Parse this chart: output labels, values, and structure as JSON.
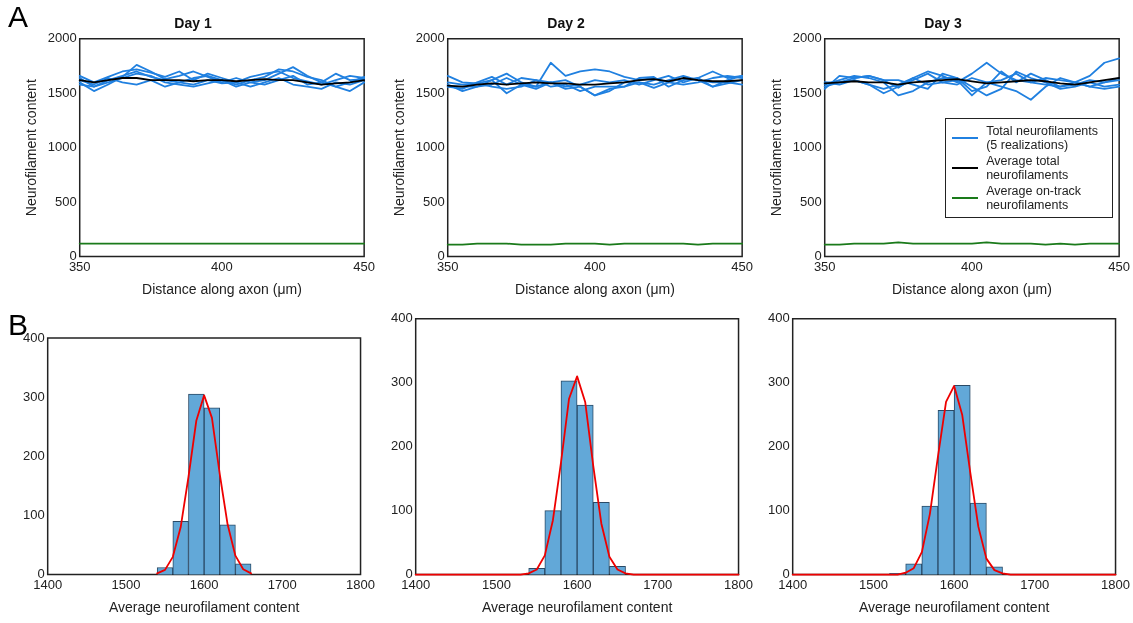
{
  "chart_data": [
    {
      "type": "line",
      "title": "Day 1",
      "xlabel": "Distance along axon (μm)",
      "ylabel": "Neurofilament content",
      "annotations": [
        "A"
      ],
      "x": [
        350,
        355,
        360,
        365,
        370,
        375,
        380,
        385,
        390,
        395,
        400,
        405,
        410,
        415,
        420,
        425,
        430,
        435,
        440,
        445,
        450
      ],
      "xlim": [
        350,
        450
      ],
      "xticks": [
        350,
        400,
        450
      ],
      "ylim": [
        0,
        2000
      ],
      "yticks": [
        0,
        500,
        1000,
        1500,
        2000
      ],
      "series": [
        {
          "color": "#2080e0",
          "values": [
            1660,
            1600,
            1650,
            1700,
            1720,
            1690,
            1650,
            1700,
            1620,
            1680,
            1640,
            1600,
            1650,
            1680,
            1700,
            1640,
            1610,
            1580,
            1620,
            1660,
            1640
          ]
        },
        {
          "color": "#2080e0",
          "values": [
            1640,
            1560,
            1620,
            1660,
            1700,
            1650,
            1620,
            1600,
            1640,
            1660,
            1620,
            1580,
            1620,
            1650,
            1720,
            1700,
            1650,
            1620,
            1560,
            1600,
            1650
          ]
        },
        {
          "color": "#2080e0",
          "values": [
            1600,
            1520,
            1580,
            1650,
            1760,
            1700,
            1630,
            1660,
            1700,
            1650,
            1600,
            1640,
            1600,
            1580,
            1620,
            1660,
            1580,
            1600,
            1680,
            1620,
            1630
          ]
        },
        {
          "color": "#2080e0",
          "values": [
            1620,
            1580,
            1640,
            1600,
            1580,
            1620,
            1560,
            1600,
            1580,
            1620,
            1590,
            1600,
            1560,
            1600,
            1640,
            1580,
            1560,
            1540,
            1600,
            1580,
            1620
          ]
        },
        {
          "color": "#2080e0",
          "values": [
            1580,
            1560,
            1600,
            1640,
            1680,
            1660,
            1600,
            1580,
            1560,
            1590,
            1620,
            1560,
            1600,
            1620,
            1680,
            1740,
            1660,
            1600,
            1560,
            1520,
            1600
          ]
        },
        {
          "color": "#000000",
          "values": [
            1620,
            1600,
            1620,
            1640,
            1640,
            1620,
            1620,
            1620,
            1610,
            1620,
            1620,
            1610,
            1620,
            1630,
            1620,
            1620,
            1600,
            1580,
            1590,
            1600,
            1620
          ]
        },
        {
          "color": "#1a7a1a",
          "values": [
            120,
            120,
            120,
            120,
            120,
            120,
            120,
            120,
            120,
            120,
            120,
            120,
            120,
            120,
            120,
            120,
            120,
            120,
            120,
            120,
            120
          ]
        }
      ]
    },
    {
      "type": "line",
      "title": "Day 2",
      "xlabel": "Distance along axon (μm)",
      "ylabel": "Neurofilament content",
      "x": [
        350,
        355,
        360,
        365,
        370,
        375,
        380,
        385,
        390,
        395,
        400,
        405,
        410,
        415,
        420,
        425,
        430,
        435,
        440,
        445,
        450
      ],
      "xlim": [
        350,
        450
      ],
      "xticks": [
        350,
        400,
        450
      ],
      "ylim": [
        0,
        2000
      ],
      "yticks": [
        0,
        500,
        1000,
        1500,
        2000
      ],
      "series": [
        {
          "color": "#2080e0",
          "values": [
            1660,
            1600,
            1590,
            1620,
            1680,
            1600,
            1560,
            1780,
            1660,
            1700,
            1720,
            1700,
            1650,
            1620,
            1640,
            1600,
            1580,
            1600,
            1640,
            1660,
            1640
          ]
        },
        {
          "color": "#2080e0",
          "values": [
            1560,
            1540,
            1600,
            1650,
            1580,
            1640,
            1620,
            1600,
            1560,
            1580,
            1620,
            1600,
            1620,
            1580,
            1620,
            1660,
            1600,
            1640,
            1700,
            1640,
            1660
          ]
        },
        {
          "color": "#2080e0",
          "values": [
            1580,
            1520,
            1560,
            1580,
            1640,
            1580,
            1540,
            1600,
            1540,
            1560,
            1480,
            1540,
            1560,
            1600,
            1580,
            1620,
            1660,
            1620,
            1560,
            1590,
            1620
          ]
        },
        {
          "color": "#2080e0",
          "values": [
            1560,
            1560,
            1560,
            1620,
            1500,
            1580,
            1560,
            1600,
            1620,
            1560,
            1480,
            1520,
            1600,
            1600,
            1550,
            1600,
            1640,
            1620,
            1600,
            1600,
            1580
          ]
        },
        {
          "color": "#2080e0",
          "values": [
            1600,
            1580,
            1590,
            1560,
            1540,
            1560,
            1620,
            1560,
            1580,
            1520,
            1560,
            1560,
            1560,
            1640,
            1650,
            1560,
            1620,
            1640,
            1560,
            1620,
            1660
          ]
        },
        {
          "color": "#000000",
          "values": [
            1570,
            1560,
            1580,
            1590,
            1580,
            1590,
            1600,
            1590,
            1590,
            1580,
            1580,
            1590,
            1600,
            1620,
            1630,
            1610,
            1640,
            1620,
            1610,
            1610,
            1620
          ]
        },
        {
          "color": "#1a7a1a",
          "values": [
            110,
            110,
            120,
            120,
            120,
            110,
            110,
            110,
            120,
            120,
            120,
            110,
            120,
            120,
            120,
            120,
            120,
            110,
            120,
            120,
            120
          ]
        }
      ]
    },
    {
      "type": "line",
      "title": "Day 3",
      "xlabel": "Distance along axon (μm)",
      "ylabel": "Neurofilament content",
      "legend": "right",
      "x": [
        350,
        355,
        360,
        365,
        370,
        375,
        380,
        385,
        390,
        395,
        400,
        405,
        410,
        415,
        420,
        425,
        430,
        435,
        440,
        445,
        450
      ],
      "xlim": [
        350,
        450
      ],
      "xticks": [
        350,
        400,
        450
      ],
      "ylim": [
        0,
        2000
      ],
      "yticks": [
        0,
        500,
        1000,
        1500,
        2000
      ],
      "series": [
        {
          "name": "Total neurofilaments (5 realizations)",
          "color": "#2080e0",
          "values": [
            1540,
            1660,
            1640,
            1660,
            1620,
            1550,
            1640,
            1700,
            1660,
            1600,
            1680,
            1780,
            1680,
            1620,
            1600,
            1580,
            1560,
            1600,
            1660,
            1780,
            1820
          ]
        },
        {
          "color": "#2080e0",
          "values": [
            1580,
            1620,
            1660,
            1640,
            1600,
            1480,
            1520,
            1600,
            1640,
            1640,
            1560,
            1480,
            1540,
            1700,
            1640,
            1600,
            1540,
            1560,
            1600,
            1560,
            1580
          ]
        },
        {
          "color": "#2080e0",
          "values": [
            1600,
            1580,
            1620,
            1580,
            1540,
            1580,
            1640,
            1580,
            1600,
            1580,
            1640,
            1600,
            1620,
            1680,
            1600,
            1640,
            1620,
            1600,
            1560,
            1600,
            1620
          ]
        },
        {
          "color": "#2080e0",
          "values": [
            1560,
            1600,
            1620,
            1580,
            1500,
            1560,
            1620,
            1680,
            1600,
            1620,
            1480,
            1600,
            1560,
            1520,
            1440,
            1560,
            1640,
            1600,
            1560,
            1540,
            1560
          ]
        },
        {
          "color": "#2080e0",
          "values": [
            1600,
            1600,
            1640,
            1660,
            1620,
            1620,
            1580,
            1540,
            1680,
            1640,
            1520,
            1560,
            1700,
            1600,
            1680,
            1620,
            1560,
            1580,
            1620,
            1600,
            1640
          ]
        },
        {
          "name": "Average total neurofilaments",
          "color": "#000000",
          "values": [
            1590,
            1600,
            1610,
            1600,
            1600,
            1580,
            1600,
            1610,
            1620,
            1630,
            1610,
            1590,
            1600,
            1610,
            1620,
            1610,
            1590,
            1580,
            1600,
            1620,
            1640
          ]
        },
        {
          "name": "Average on-track neurofilaments",
          "color": "#1a7a1a",
          "values": [
            110,
            110,
            120,
            120,
            120,
            130,
            120,
            120,
            120,
            120,
            120,
            130,
            120,
            120,
            120,
            110,
            120,
            110,
            120,
            120,
            120
          ]
        }
      ]
    },
    {
      "type": "histogram",
      "xlabel": "Average neurofilament content",
      "annotations": [
        "B"
      ],
      "color": "#62a8d8",
      "bins": [
        1540,
        1560,
        1580,
        1600,
        1620,
        1640,
        1660
      ],
      "values": [
        12,
        90,
        305,
        282,
        84,
        18
      ],
      "xlim": [
        1400,
        1800
      ],
      "xticks": [
        1400,
        1500,
        1600,
        1700,
        1800
      ],
      "ylim": [
        0,
        400
      ],
      "yticks": [
        0,
        100,
        200,
        300,
        400
      ],
      "series": [
        {
          "type": "line",
          "color": "#ee0000",
          "x": [
            1540,
            1550,
            1560,
            1570,
            1580,
            1590,
            1600,
            1610,
            1620,
            1630,
            1640,
            1650,
            1660
          ],
          "values": [
            2,
            8,
            30,
            80,
            165,
            260,
            303,
            265,
            170,
            85,
            32,
            9,
            2
          ]
        }
      ]
    },
    {
      "type": "histogram",
      "xlabel": "Average neurofilament content",
      "color": "#62a8d8",
      "bins": [
        1540,
        1560,
        1580,
        1600,
        1620,
        1640,
        1660
      ],
      "values": [
        10,
        100,
        303,
        265,
        113,
        13
      ],
      "xlim": [
        1400,
        1800
      ],
      "xticks": [
        1400,
        1500,
        1600,
        1700,
        1800
      ],
      "ylim": [
        0,
        400
      ],
      "yticks": [
        0,
        100,
        200,
        300,
        400
      ],
      "series": [
        {
          "type": "line",
          "color": "#ee0000",
          "x": [
            1400,
            1500,
            1530,
            1540,
            1550,
            1560,
            1570,
            1580,
            1590,
            1600,
            1610,
            1620,
            1630,
            1640,
            1650,
            1660,
            1670,
            1700,
            1800
          ],
          "values": [
            0,
            0,
            0,
            2,
            8,
            30,
            85,
            175,
            275,
            310,
            270,
            170,
            80,
            28,
            8,
            2,
            0,
            0,
            0
          ]
        }
      ]
    },
    {
      "type": "histogram",
      "xlabel": "Average neurofilament content",
      "color": "#62a8d8",
      "bins": [
        1520,
        1540,
        1560,
        1580,
        1600,
        1620,
        1640,
        1660
      ],
      "values": [
        2,
        17,
        107,
        257,
        296,
        112,
        12
      ],
      "xlim": [
        1400,
        1800
      ],
      "xticks": [
        1400,
        1500,
        1600,
        1700,
        1800
      ],
      "ylim": [
        0,
        400
      ],
      "yticks": [
        0,
        100,
        200,
        300,
        400
      ],
      "series": [
        {
          "type": "line",
          "color": "#ee0000",
          "x": [
            1400,
            1500,
            1530,
            1540,
            1550,
            1560,
            1570,
            1580,
            1590,
            1600,
            1610,
            1620,
            1630,
            1640,
            1650,
            1660,
            1670,
            1700,
            1800
          ],
          "values": [
            0,
            0,
            0,
            3,
            10,
            35,
            95,
            185,
            270,
            295,
            250,
            160,
            75,
            25,
            7,
            2,
            0,
            0,
            0
          ]
        }
      ]
    }
  ]
}
